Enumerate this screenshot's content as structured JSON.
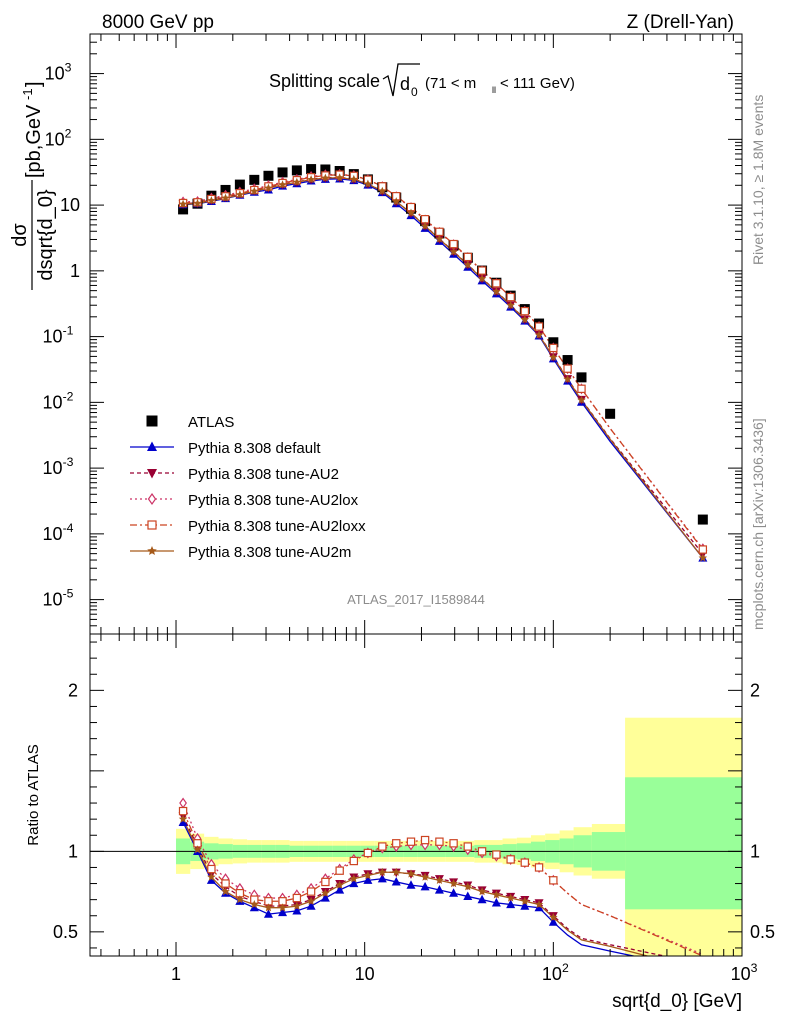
{
  "header": {
    "left": "8000 GeV pp",
    "right": "Z (Drell-Yan)"
  },
  "main_title": {
    "prefix": "Splitting scale",
    "sqrt_var": "d",
    "sub": "0",
    "cut": "(71 < m",
    "cut_sub": "ll",
    "cut_end": " < 111 GeV)"
  },
  "watermark": "ATLAS_2017_I1589844",
  "side_text": {
    "rivet": "Rivet 3.1.10, ≥ 1.8M events",
    "mcplots": "mcplots.cern.ch [arXiv:1306.3436]"
  },
  "y_label_top": {
    "numer": "dσ",
    "denom": "dsqrt{d_0}",
    "unit": " [pb,GeV",
    "unit_exp": "-1",
    "unit_end": "]"
  },
  "y_label_bottom": "Ratio to ATLAS",
  "x_label": "sqrt{d_0} [GeV]",
  "ticks": {
    "main_y": [
      {
        "v": 1e-05,
        "b": "10",
        "e": "-5"
      },
      {
        "v": 0.0001,
        "b": "10",
        "e": "-4"
      },
      {
        "v": 0.001,
        "b": "10",
        "e": "-3"
      },
      {
        "v": 0.01,
        "b": "10",
        "e": "-2"
      },
      {
        "v": 0.1,
        "b": "10",
        "e": "-1"
      },
      {
        "v": 1,
        "b": "1",
        "e": ""
      },
      {
        "v": 10,
        "b": "10",
        "e": ""
      },
      {
        "v": 100,
        "b": "10",
        "e": "2"
      },
      {
        "v": 1000,
        "b": "10",
        "e": "3"
      }
    ],
    "ratio_y": [
      {
        "v": 0.5,
        "t": "0.5"
      },
      {
        "v": 1,
        "t": "1"
      },
      {
        "v": 2,
        "t": "2"
      }
    ],
    "x": [
      {
        "v": 1,
        "b": "1",
        "e": ""
      },
      {
        "v": 10,
        "b": "10",
        "e": ""
      },
      {
        "v": 100,
        "b": "10",
        "e": "2"
      },
      {
        "v": 1000,
        "b": "10",
        "e": "3"
      }
    ]
  },
  "chart_data": {
    "type": "scatter",
    "x_scale": "log",
    "main_y_scale": "log",
    "xlim": [
      0.35,
      1000
    ],
    "main_ylim": [
      3e-06,
      4000
    ],
    "ratio_ylim": [
      0.35,
      2.35
    ],
    "legend_position": "bottom-left",
    "x": [
      1.09,
      1.3,
      1.54,
      1.83,
      2.18,
      2.6,
      3.09,
      3.67,
      4.37,
      5.2,
      6.19,
      7.37,
      8.76,
      10.4,
      12.4,
      14.7,
      17.6,
      20.9,
      24.9,
      29.6,
      35.2,
      41.9,
      49.9,
      59.4,
      70.6,
      84.0,
      100,
      119,
      141,
      200,
      620
    ],
    "series": [
      {
        "name": "ATLAS",
        "color": "#000000",
        "marker": "square",
        "values": [
          8.6,
          10.5,
          13.9,
          17.0,
          20.5,
          24.2,
          27.9,
          31.4,
          33.7,
          35.3,
          34.8,
          33.0,
          29.6,
          24.6,
          18.7,
          13.0,
          8.8,
          5.7,
          3.7,
          2.43,
          1.58,
          1.01,
          0.66,
          0.42,
          0.262,
          0.158,
          0.082,
          0.044,
          0.024,
          0.0067,
          0.000165
        ]
      },
      {
        "name": "Pythia 8.308 default",
        "color": "#0000cc",
        "marker": "triangle-up",
        "ratios": [
          1.18,
          1.0,
          0.82,
          0.74,
          0.69,
          0.65,
          0.61,
          0.62,
          0.63,
          0.66,
          0.71,
          0.76,
          0.8,
          0.82,
          0.83,
          0.81,
          0.79,
          0.78,
          0.76,
          0.74,
          0.72,
          0.7,
          0.68,
          0.67,
          0.66,
          0.65,
          0.56,
          0.48,
          0.42,
          0.38,
          0.26
        ]
      },
      {
        "name": "Pythia 8.308 tune-AU2",
        "color": "#990033",
        "marker": "triangle-down",
        "ratios": [
          1.22,
          1.03,
          0.86,
          0.78,
          0.72,
          0.69,
          0.66,
          0.66,
          0.67,
          0.7,
          0.75,
          0.8,
          0.84,
          0.86,
          0.87,
          0.87,
          0.86,
          0.85,
          0.83,
          0.81,
          0.79,
          0.76,
          0.74,
          0.72,
          0.7,
          0.68,
          0.6,
          0.52,
          0.46,
          0.42,
          0.3
        ]
      },
      {
        "name": "Pythia 8.308 tune-AU2lox",
        "color": "#cc3366",
        "marker": "diamond",
        "ratios": [
          1.3,
          1.08,
          0.92,
          0.83,
          0.77,
          0.73,
          0.71,
          0.71,
          0.73,
          0.77,
          0.83,
          0.89,
          0.95,
          0.99,
          1.02,
          1.03,
          1.04,
          1.04,
          1.04,
          1.03,
          1.01,
          0.99,
          0.97,
          0.95,
          0.93,
          0.9,
          0.82,
          0.74,
          0.67,
          0.6,
          0.36
        ]
      },
      {
        "name": "Pythia 8.308 tune-AU2loxx",
        "color": "#cc4422",
        "marker": "square-open",
        "ratios": [
          1.25,
          1.05,
          0.89,
          0.8,
          0.74,
          0.7,
          0.69,
          0.69,
          0.71,
          0.75,
          0.81,
          0.88,
          0.94,
          0.99,
          1.03,
          1.05,
          1.06,
          1.07,
          1.06,
          1.05,
          1.03,
          1.0,
          0.98,
          0.95,
          0.93,
          0.9,
          0.82,
          0.74,
          0.67,
          0.6,
          0.35
        ]
      },
      {
        "name": "Pythia 8.308 tune-AU2m",
        "color": "#a65a1a",
        "marker": "star",
        "ratios": [
          1.2,
          1.01,
          0.84,
          0.75,
          0.7,
          0.67,
          0.65,
          0.65,
          0.66,
          0.69,
          0.74,
          0.79,
          0.83,
          0.85,
          0.87,
          0.87,
          0.86,
          0.84,
          0.82,
          0.8,
          0.78,
          0.75,
          0.73,
          0.71,
          0.69,
          0.67,
          0.59,
          0.51,
          0.45,
          0.41,
          0.26
        ]
      }
    ],
    "uncertainty_bands": {
      "edges": [
        1.0,
        1.19,
        1.41,
        1.68,
        2.0,
        2.38,
        2.83,
        3.36,
        4.0,
        4.76,
        5.66,
        6.73,
        8.0,
        9.51,
        11.3,
        13.5,
        16.0,
        19.0,
        22.6,
        26.9,
        32.0,
        38.1,
        45.3,
        53.8,
        64.0,
        76.1,
        90.5,
        108,
        128,
        160,
        240,
        1000
      ],
      "inner": [
        [
          0.92,
          1.08
        ],
        [
          0.94,
          1.06
        ],
        [
          0.95,
          1.05
        ],
        [
          0.955,
          1.045
        ],
        [
          0.96,
          1.04
        ],
        [
          0.96,
          1.04
        ],
        [
          0.96,
          1.04
        ],
        [
          0.96,
          1.04
        ],
        [
          0.965,
          1.035
        ],
        [
          0.965,
          1.035
        ],
        [
          0.965,
          1.035
        ],
        [
          0.965,
          1.035
        ],
        [
          0.965,
          1.035
        ],
        [
          0.965,
          1.035
        ],
        [
          0.965,
          1.035
        ],
        [
          0.965,
          1.035
        ],
        [
          0.965,
          1.035
        ],
        [
          0.965,
          1.035
        ],
        [
          0.965,
          1.035
        ],
        [
          0.965,
          1.035
        ],
        [
          0.965,
          1.035
        ],
        [
          0.96,
          1.04
        ],
        [
          0.96,
          1.04
        ],
        [
          0.955,
          1.045
        ],
        [
          0.95,
          1.05
        ],
        [
          0.94,
          1.06
        ],
        [
          0.93,
          1.07
        ],
        [
          0.92,
          1.08
        ],
        [
          0.9,
          1.1
        ],
        [
          0.88,
          1.12
        ],
        [
          0.64,
          1.46
        ]
      ],
      "outer": [
        [
          0.86,
          1.14
        ],
        [
          0.89,
          1.11
        ],
        [
          0.91,
          1.09
        ],
        [
          0.92,
          1.08
        ],
        [
          0.925,
          1.075
        ],
        [
          0.93,
          1.07
        ],
        [
          0.93,
          1.07
        ],
        [
          0.93,
          1.07
        ],
        [
          0.935,
          1.065
        ],
        [
          0.935,
          1.065
        ],
        [
          0.935,
          1.065
        ],
        [
          0.935,
          1.065
        ],
        [
          0.935,
          1.065
        ],
        [
          0.935,
          1.065
        ],
        [
          0.935,
          1.065
        ],
        [
          0.935,
          1.065
        ],
        [
          0.935,
          1.065
        ],
        [
          0.935,
          1.065
        ],
        [
          0.935,
          1.065
        ],
        [
          0.935,
          1.065
        ],
        [
          0.935,
          1.065
        ],
        [
          0.93,
          1.07
        ],
        [
          0.93,
          1.07
        ],
        [
          0.92,
          1.08
        ],
        [
          0.915,
          1.085
        ],
        [
          0.9,
          1.1
        ],
        [
          0.89,
          1.11
        ],
        [
          0.87,
          1.13
        ],
        [
          0.85,
          1.15
        ],
        [
          0.83,
          1.17
        ],
        [
          0.2,
          1.83
        ]
      ]
    },
    "colors": {
      "inner_band": "#99ff99",
      "outer_band": "#ffff99"
    }
  }
}
